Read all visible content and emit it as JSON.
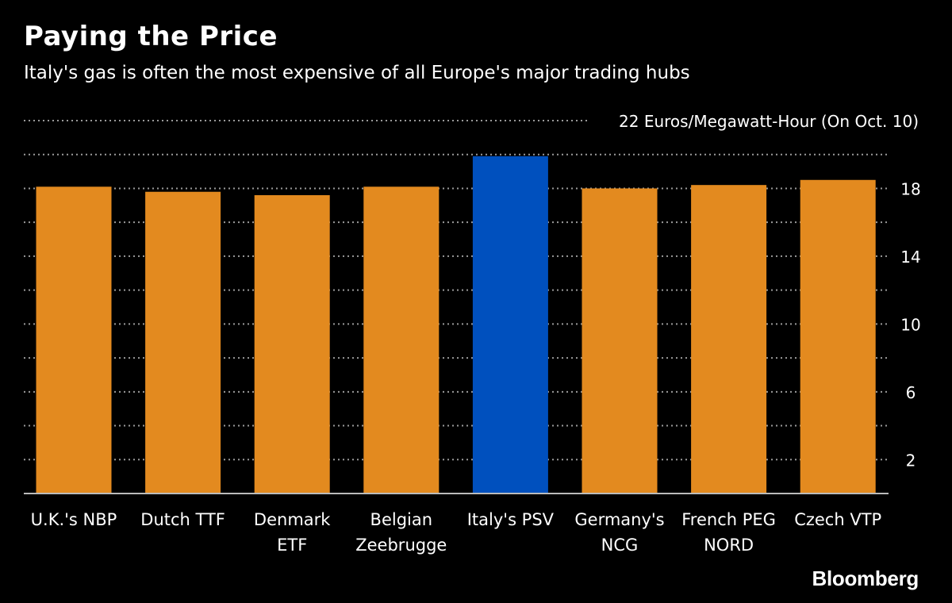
{
  "chart_data": {
    "type": "bar",
    "title": "Paying the Price",
    "subtitle": "Italy's gas is often the most expensive of all Europe's major trading hubs",
    "unit_label": "22 Euros/Megawatt-Hour (On Oct. 10)",
    "categories": [
      [
        "U.K.'s NBP"
      ],
      [
        "Dutch TTF"
      ],
      [
        "Denmark",
        "ETF"
      ],
      [
        "Belgian",
        "Zeebrugge"
      ],
      [
        "Italy's PSV"
      ],
      [
        "Germany's",
        "NCG"
      ],
      [
        "French PEG",
        "NORD"
      ],
      [
        "Czech VTP"
      ]
    ],
    "values": [
      18.1,
      17.8,
      17.6,
      18.1,
      19.9,
      18.0,
      18.2,
      18.5
    ],
    "ylim": [
      0,
      22
    ],
    "yticks": [
      2,
      6,
      10,
      14,
      18
    ],
    "gridlines": [
      2,
      4,
      6,
      8,
      10,
      12,
      14,
      16,
      18,
      20,
      22
    ],
    "colors": {
      "default": "#E38A1F",
      "highlight": "#0050BE",
      "highlight_index": 4,
      "grid": "#9a9a9a",
      "background": "#000000"
    },
    "legend": "none",
    "xlabel": "",
    "ylabel": ""
  },
  "source": "Bloomberg"
}
